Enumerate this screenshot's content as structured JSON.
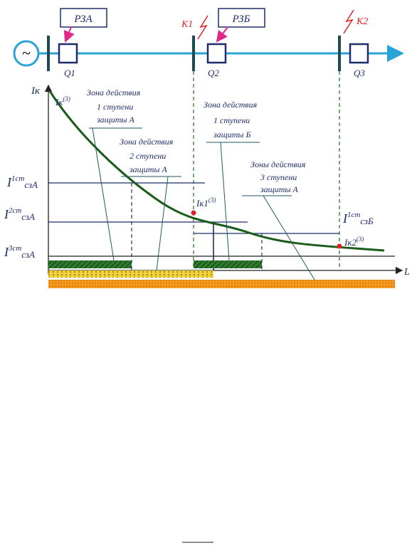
{
  "header": {
    "relay_a": "РЗА",
    "relay_b": "РЗБ",
    "fault_1": "К1",
    "fault_2": "К2",
    "source": "~"
  },
  "breakers": [
    "Q1",
    "Q2",
    "Q3"
  ],
  "axes": {
    "y_label": "Iк",
    "x_label": "L",
    "curve_label": {
      "main": "Iк",
      "sup": "(3)"
    }
  },
  "zones": [
    {
      "lines": [
        "Зона действия",
        "1 ступени",
        "защиты А"
      ]
    },
    {
      "lines": [
        "Зона действия",
        "2 ступени",
        "защиты А"
      ]
    },
    {
      "lines": [
        "Зона действия",
        "1 ступени",
        "защиты Б"
      ]
    },
    {
      "lines": [
        "Зоны действия",
        "3 ступени",
        "защиты А"
      ]
    }
  ],
  "settings": [
    {
      "main": "I",
      "sup": "1ст",
      "sub": "сзА"
    },
    {
      "main": "I",
      "sup": "2ст",
      "sub": "сзА"
    },
    {
      "main": "I",
      "sup": "3ст",
      "sub": "сзА"
    },
    {
      "main": "I",
      "sup": "1ст",
      "sub": "сзБ"
    }
  ],
  "points": [
    {
      "main": "Iк1",
      "sup": "(3)"
    },
    {
      "main": "Iк2",
      "sup": "(3)"
    }
  ]
}
